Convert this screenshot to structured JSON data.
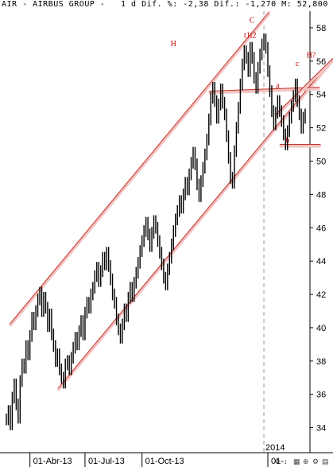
{
  "header": {
    "symbol": "AIR",
    "name": "AIRBUS GROUP",
    "interval": "1 d",
    "dif_pct": "-2,38",
    "dif": "-1,270",
    "m": "52,800"
  },
  "colors": {
    "price": "#000000",
    "channel": "#c0392b",
    "channel_glow": "#f4c2c2",
    "annotation": "#c00000",
    "axis": "#000000",
    "year_divider": "#999999"
  },
  "toolbar_icons": [
    "drag-icon",
    "arrow-icon",
    "calendar-icon",
    "zoom-icon",
    "settings-icon",
    "chart-icon"
  ],
  "chart_data": {
    "type": "line",
    "title": "AIR - AIRBUS GROUP - 1 d",
    "ylim": [
      32.5,
      59
    ],
    "yticks": [
      34,
      36,
      38,
      40,
      42,
      44,
      46,
      48,
      50,
      52,
      54,
      56,
      58
    ],
    "x_label_ticks": [
      "01-Abr-13",
      "01-Jul-13",
      "01-Oct-13",
      "01-"
    ],
    "year_label": "2014",
    "series": [
      {
        "values": [
          34.5,
          35.0,
          34.2,
          35.8,
          36.6,
          35.4,
          34.6,
          36.8,
          37.8,
          37.6,
          38.9,
          38.4,
          39.5,
          40.6,
          40.2,
          41.0,
          41.7,
          42.1,
          41.0,
          41.8,
          41.2,
          40.1,
          40.8,
          39.6,
          38.9,
          38.0,
          38.4,
          37.5,
          37.0,
          36.7,
          37.8,
          38.0,
          37.5,
          38.2,
          38.8,
          39.4,
          39.0,
          39.8,
          40.4,
          39.6,
          40.9,
          41.5,
          41.2,
          42.0,
          42.4,
          43.1,
          43.6,
          42.8,
          43.4,
          44.2,
          43.8,
          44.5,
          43.7,
          42.9,
          42.0,
          41.5,
          40.5,
          39.9,
          39.4,
          40.2,
          41.1,
          40.7,
          41.8,
          42.4,
          41.9,
          42.7,
          43.3,
          43.9,
          44.6,
          45.2,
          45.8,
          46.3,
          45.6,
          44.9,
          45.7,
          46.4,
          46.0,
          45.2,
          44.5,
          43.8,
          43.0,
          42.6,
          43.5,
          44.2,
          45.0,
          45.8,
          46.5,
          47.0,
          47.6,
          47.2,
          48.0,
          48.7,
          48.3,
          49.2,
          49.9,
          50.5,
          49.8,
          48.6,
          47.9,
          48.8,
          49.6,
          50.4,
          51.3,
          52.5,
          53.8,
          54.4,
          53.6,
          52.6,
          53.4,
          54.3,
          53.5,
          52.8,
          51.5,
          50.2,
          49.0,
          48.7,
          50.6,
          52.0,
          53.2,
          54.6,
          55.8,
          56.6,
          56.2,
          55.4,
          56.8,
          56.2,
          55.0,
          54.4,
          55.6,
          56.4,
          57.0,
          57.3,
          56.8,
          55.4,
          54.2,
          53.0,
          52.2,
          52.9,
          53.6,
          53.0,
          52.4,
          51.6,
          51.0,
          51.8,
          52.6,
          53.3,
          53.9,
          54.6,
          53.6,
          52.8,
          52.0,
          52.6,
          52.8
        ]
      }
    ],
    "annotations": [
      "H",
      "C",
      "t1t2",
      "a",
      "c",
      "H?",
      "b"
    ]
  }
}
